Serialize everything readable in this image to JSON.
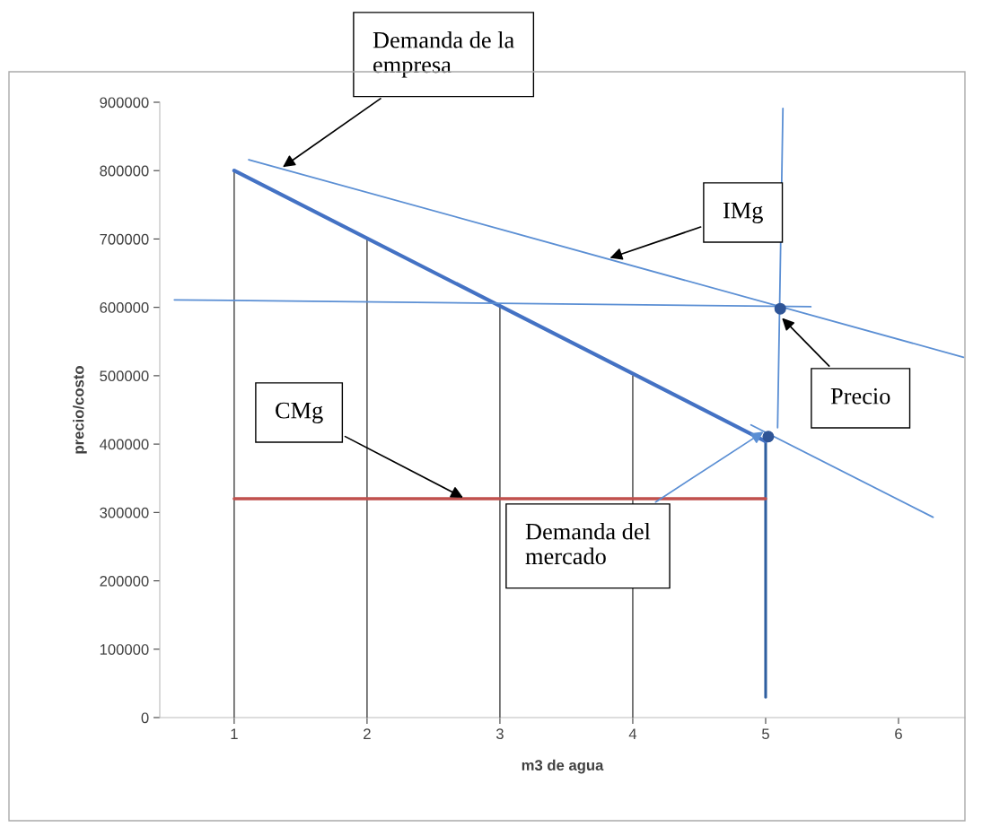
{
  "chart_data": {
    "type": "line",
    "xlabel": "m3 de agua",
    "ylabel": "precio/costo",
    "xlim": [
      0.44,
      6.5
    ],
    "ylim": [
      0,
      900000
    ],
    "xticks": [
      1,
      2,
      3,
      4,
      5,
      6
    ],
    "yticks": [
      0,
      100000,
      200000,
      300000,
      400000,
      500000,
      600000,
      700000,
      800000,
      900000
    ],
    "grid": false,
    "legend": false,
    "marker": "none",
    "line_style": "solid",
    "series": [
      {
        "color": "#404040",
        "x": [
          1,
          1
        ],
        "values": [
          0,
          800000
        ]
      },
      {
        "color": "#404040",
        "x": [
          2,
          2
        ],
        "values": [
          0,
          700000
        ]
      },
      {
        "color": "#404040",
        "x": [
          3,
          3
        ],
        "values": [
          0,
          600000
        ]
      },
      {
        "color": "#404040",
        "x": [
          4,
          4
        ],
        "values": [
          0,
          500000
        ]
      },
      {
        "color": "#2f5fa0",
        "x": [
          5,
          5
        ],
        "values": [
          30000,
          410000
        ]
      },
      {
        "color": "#4472c4",
        "x": [
          1,
          5
        ],
        "values": [
          800000,
          404000
        ]
      },
      {
        "color": "#c0504d",
        "x": [
          1,
          5
        ],
        "values": [
          320000,
          320000
        ]
      },
      {
        "color": "#5b8fd4",
        "x": [
          1.11,
          6.49
        ],
        "values": [
          816000,
          527000
        ]
      },
      {
        "color": "#5b8fd4",
        "x": [
          0.55,
          5.34
        ],
        "values": [
          611000,
          601000
        ]
      },
      {
        "color": "#5b8fd4",
        "x": [
          5.13,
          5.09
        ],
        "values": [
          891000,
          424000
        ]
      },
      {
        "color": "#5b8fd4",
        "x": [
          4.89,
          6.26
        ],
        "values": [
          428000,
          293000
        ]
      },
      {
        "type": "scatter",
        "marker": "circle",
        "color": "#2f5597",
        "x": [
          5.11,
          5.02
        ],
        "values": [
          598000,
          411000
        ]
      }
    ],
    "annotations": [
      {
        "text": "Demanda de la\nempresa",
        "x": 1.35,
        "y": 803000
      },
      {
        "text": "IMg",
        "x": 3.81,
        "y": 671000
      },
      {
        "text": "Precio",
        "x": 5.11,
        "y": 587000
      },
      {
        "text": "CMg",
        "x": 2.74,
        "y": 320000
      },
      {
        "text": "Demanda del\nmercado",
        "x": 5.0,
        "y": 420000
      }
    ]
  }
}
